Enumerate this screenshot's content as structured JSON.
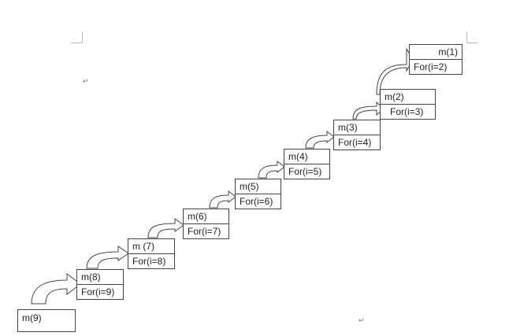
{
  "paragraph_mark": "↵",
  "boxes": [
    {
      "label": "m(1)",
      "loop": "For(i=2)"
    },
    {
      "label": "m(2)",
      "loop": "For(i=3)"
    },
    {
      "label": "m(3)",
      "loop": "For(i=4)"
    },
    {
      "label": "m(4)",
      "loop": "For(i=5)"
    },
    {
      "label": "m(5)",
      "loop": "For(i=6)"
    },
    {
      "label": "m(6)",
      "loop": "For(i=7)"
    },
    {
      "label": "m (7)",
      "loop": "For(i=8)"
    },
    {
      "label": "m(8)",
      "loop": "For(i=9)"
    },
    {
      "label": "m(9)"
    }
  ]
}
